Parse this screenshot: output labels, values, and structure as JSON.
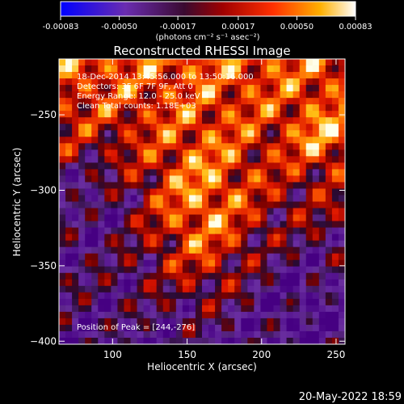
{
  "chart_data": {
    "type": "heatmap",
    "title": "Reconstructed RHESSI Image",
    "xlabel": "Heliocentric X (arcsec)",
    "ylabel": "Heliocentric Y (arcsec)",
    "xlim": [
      64,
      256
    ],
    "ylim": [
      -402,
      -213
    ],
    "x_ticks": [
      100,
      150,
      200,
      250
    ],
    "y_ticks": [
      -250,
      -300,
      -350,
      -400
    ],
    "colorbar": {
      "range": [
        -0.00083,
        0.00083
      ],
      "ticks": [
        "-0.00083",
        "-0.00050",
        "-0.00017",
        "0.00017",
        "0.00050",
        "0.00083"
      ],
      "tick_values": [
        -0.00083,
        -0.0005,
        -0.00017,
        0.00017,
        0.0005,
        0.00083
      ],
      "label": "(photons cm⁻² s⁻¹ asec⁻²)",
      "colormap": "blue-purple-red-yellow-white"
    },
    "annotations": [
      "18-Dec-2014 13:45:56.000 to 13:50:16.000",
      "Detectors: 3F 6F 7F 9F, Att 0",
      "Energy Range: 12.0 - 25.0 keV",
      "Clean     Total counts: 1.18E+03"
    ],
    "peak_label": "Position of Peak = [244,-276]",
    "peak": [
      244,
      -276
    ],
    "grid": false,
    "legend": "none"
  },
  "footer": {
    "timestamp": "20-May-2022 18:59"
  }
}
